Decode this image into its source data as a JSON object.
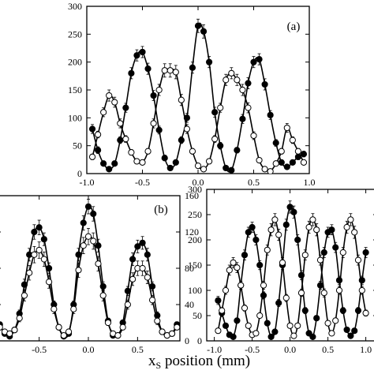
{
  "chart_data": [
    {
      "type": "scatter",
      "panel_label": "(a)",
      "xlim": [
        -1.0,
        1.0
      ],
      "ylim": [
        0,
        300
      ],
      "xticks": [
        -1.0,
        -0.5,
        0.0,
        0.5,
        1.0
      ],
      "xtick_labels": [
        "-1.0",
        "-0.5",
        "0.0",
        "0.5",
        "1.0"
      ],
      "yticks": [
        0,
        50,
        100,
        150,
        200,
        250,
        300
      ],
      "ytick_labels": [
        "0",
        "50",
        "100",
        "150",
        "200",
        "250",
        "300"
      ],
      "series": [
        {
          "marker": "filled",
          "x": [
            -0.95,
            -0.9,
            -0.85,
            -0.8,
            -0.75,
            -0.7,
            -0.65,
            -0.6,
            -0.55,
            -0.5,
            -0.45,
            -0.4,
            -0.35,
            -0.3,
            -0.25,
            -0.2,
            -0.15,
            -0.1,
            -0.05,
            0.0,
            0.05,
            0.1,
            0.15,
            0.2,
            0.25,
            0.3,
            0.35,
            0.4,
            0.45,
            0.5,
            0.55,
            0.6,
            0.65,
            0.7,
            0.75,
            0.8,
            0.85,
            0.9,
            0.95
          ],
          "y": [
            80,
            42,
            18,
            8,
            18,
            60,
            118,
            180,
            212,
            218,
            188,
            140,
            78,
            28,
            10,
            20,
            60,
            100,
            190,
            265,
            255,
            200,
            110,
            50,
            10,
            6,
            42,
            98,
            162,
            200,
            205,
            160,
            105,
            55,
            20,
            12,
            20,
            30,
            35
          ],
          "error": [
            8,
            6,
            4,
            3,
            4,
            6,
            8,
            10,
            10,
            10,
            10,
            9,
            7,
            5,
            3,
            4,
            6,
            8,
            10,
            12,
            12,
            10,
            9,
            6,
            3,
            3,
            5,
            8,
            10,
            10,
            10,
            10,
            8,
            6,
            4,
            3,
            4,
            5,
            5
          ]
        },
        {
          "marker": "open",
          "x": [
            -0.95,
            -0.9,
            -0.85,
            -0.8,
            -0.75,
            -0.7,
            -0.65,
            -0.6,
            -0.55,
            -0.5,
            -0.45,
            -0.4,
            -0.35,
            -0.3,
            -0.25,
            -0.2,
            -0.15,
            -0.1,
            -0.05,
            0.0,
            0.05,
            0.1,
            0.15,
            0.2,
            0.25,
            0.3,
            0.35,
            0.4,
            0.45,
            0.5,
            0.55,
            0.6,
            0.65,
            0.7,
            0.75,
            0.8,
            0.85,
            0.9,
            0.95
          ],
          "y": [
            30,
            70,
            110,
            140,
            128,
            90,
            62,
            38,
            22,
            20,
            40,
            90,
            150,
            185,
            185,
            182,
            132,
            80,
            40,
            14,
            8,
            22,
            62,
            118,
            168,
            180,
            168,
            150,
            118,
            68,
            24,
            8,
            4,
            18,
            40,
            82,
            60,
            40,
            20
          ],
          "error": [
            5,
            6,
            8,
            10,
            9,
            8,
            6,
            5,
            4,
            4,
            5,
            8,
            10,
            12,
            12,
            12,
            10,
            8,
            5,
            3,
            3,
            4,
            6,
            8,
            10,
            10,
            10,
            10,
            9,
            7,
            4,
            3,
            3,
            4,
            5,
            8,
            6,
            5,
            4
          ]
        }
      ]
    },
    {
      "type": "scatter",
      "panel_label": "(b)",
      "xlim": [
        -0.93,
        0.93
      ],
      "ylim": [
        0,
        160
      ],
      "xticks": [
        -0.5,
        0.0,
        0.5
      ],
      "xtick_labels": [
        "-0.5",
        "0.0",
        "0.5"
      ],
      "yticks_right": [
        0,
        40,
        80,
        120,
        160
      ],
      "ytick_labels_right": [
        "0",
        "40",
        "80",
        "120",
        "160"
      ],
      "series": [
        {
          "marker": "filled",
          "x": [
            -0.9,
            -0.85,
            -0.8,
            -0.75,
            -0.7,
            -0.65,
            -0.6,
            -0.55,
            -0.5,
            -0.45,
            -0.4,
            -0.35,
            -0.3,
            -0.25,
            -0.2,
            -0.15,
            -0.1,
            -0.05,
            0.0,
            0.05,
            0.1,
            0.15,
            0.2,
            0.25,
            0.3,
            0.35,
            0.4,
            0.45,
            0.5,
            0.55,
            0.6,
            0.65,
            0.7,
            0.75,
            0.8,
            0.85,
            0.9
          ],
          "y": [
            18,
            8,
            5,
            12,
            30,
            62,
            95,
            120,
            125,
            112,
            80,
            40,
            15,
            5,
            8,
            40,
            95,
            130,
            148,
            140,
            105,
            60,
            22,
            6,
            6,
            20,
            55,
            90,
            104,
            108,
            95,
            60,
            28,
            10,
            6,
            8,
            18
          ],
          "error": [
            3,
            2,
            2,
            3,
            4,
            6,
            7,
            8,
            8,
            7,
            6,
            4,
            3,
            2,
            2,
            4,
            7,
            8,
            8,
            8,
            7,
            5,
            3,
            2,
            2,
            3,
            5,
            7,
            7,
            7,
            7,
            5,
            4,
            3,
            2,
            2,
            3
          ]
        },
        {
          "marker": "open",
          "x": [
            -0.9,
            -0.85,
            -0.8,
            -0.75,
            -0.7,
            -0.65,
            -0.6,
            -0.55,
            -0.5,
            -0.45,
            -0.4,
            -0.35,
            -0.3,
            -0.25,
            -0.2,
            -0.15,
            -0.1,
            -0.05,
            0.0,
            0.05,
            0.1,
            0.15,
            0.2,
            0.25,
            0.3,
            0.35,
            0.4,
            0.45,
            0.5,
            0.55,
            0.6,
            0.65,
            0.7,
            0.75,
            0.8,
            0.85,
            0.9
          ],
          "y": [
            15,
            10,
            8,
            12,
            25,
            50,
            75,
            95,
            100,
            90,
            65,
            35,
            15,
            6,
            10,
            35,
            78,
            105,
            115,
            110,
            85,
            50,
            20,
            8,
            6,
            15,
            40,
            68,
            80,
            80,
            70,
            45,
            22,
            10,
            6,
            8,
            15
          ],
          "error": [
            3,
            2,
            2,
            3,
            4,
            6,
            8,
            9,
            9,
            8,
            7,
            5,
            3,
            2,
            2,
            5,
            8,
            9,
            9,
            9,
            8,
            6,
            3,
            2,
            2,
            3,
            5,
            7,
            8,
            8,
            7,
            5,
            4,
            3,
            2,
            2,
            3
          ]
        }
      ]
    },
    {
      "type": "scatter",
      "panel_label": "",
      "xlim": [
        -1.1,
        1.15
      ],
      "ylim": [
        0,
        300
      ],
      "xticks": [
        -1.0,
        -0.5,
        0.0,
        0.5,
        1.0
      ],
      "xtick_labels": [
        "-1.0",
        "-0.5",
        "0.0",
        "0.5",
        "1.0"
      ],
      "yticks": [
        0,
        50,
        100,
        150,
        200,
        250,
        300
      ],
      "ytick_labels": [
        "0",
        "50",
        "100",
        "150",
        "200",
        "250",
        "300"
      ],
      "series": [
        {
          "marker": "filled",
          "x": [
            -0.95,
            -0.9,
            -0.85,
            -0.8,
            -0.75,
            -0.7,
            -0.65,
            -0.6,
            -0.55,
            -0.5,
            -0.45,
            -0.4,
            -0.35,
            -0.3,
            -0.25,
            -0.2,
            -0.15,
            -0.1,
            -0.05,
            0.0,
            0.05,
            0.1,
            0.15,
            0.2,
            0.25,
            0.3,
            0.35,
            0.4,
            0.45,
            0.5,
            0.55,
            0.6,
            0.65,
            0.7,
            0.75,
            0.8,
            0.85,
            0.9,
            0.95,
            1.0
          ],
          "y": [
            80,
            55,
            30,
            12,
            8,
            40,
            110,
            170,
            215,
            225,
            200,
            150,
            90,
            35,
            8,
            18,
            75,
            150,
            230,
            265,
            255,
            200,
            130,
            60,
            15,
            8,
            45,
            110,
            175,
            215,
            220,
            185,
            120,
            60,
            22,
            10,
            20,
            60,
            120,
            175
          ],
          "error": [
            8,
            7,
            5,
            3,
            3,
            5,
            8,
            10,
            10,
            10,
            10,
            9,
            7,
            5,
            3,
            4,
            7,
            9,
            11,
            12,
            12,
            10,
            9,
            6,
            3,
            3,
            5,
            8,
            10,
            10,
            10,
            10,
            8,
            6,
            4,
            3,
            4,
            6,
            8,
            10
          ]
        },
        {
          "marker": "open",
          "x": [
            -0.95,
            -0.9,
            -0.85,
            -0.8,
            -0.75,
            -0.7,
            -0.65,
            -0.6,
            -0.55,
            -0.5,
            -0.45,
            -0.4,
            -0.35,
            -0.3,
            -0.25,
            -0.2,
            -0.15,
            -0.1,
            -0.05,
            0.0,
            0.05,
            0.1,
            0.15,
            0.2,
            0.25,
            0.3,
            0.35,
            0.4,
            0.45,
            0.5,
            0.55,
            0.6,
            0.65,
            0.7,
            0.75,
            0.8,
            0.85,
            0.9,
            0.95,
            1.0
          ],
          "y": [
            20,
            60,
            100,
            140,
            155,
            145,
            110,
            65,
            30,
            12,
            15,
            50,
            110,
            180,
            220,
            240,
            210,
            155,
            85,
            30,
            10,
            30,
            95,
            170,
            225,
            240,
            220,
            160,
            95,
            35,
            15,
            40,
            100,
            175,
            225,
            240,
            215,
            160,
            100,
            55
          ],
          "error": [
            5,
            6,
            8,
            10,
            10,
            10,
            8,
            6,
            4,
            3,
            3,
            5,
            8,
            10,
            12,
            12,
            11,
            10,
            7,
            4,
            3,
            4,
            7,
            10,
            12,
            12,
            12,
            10,
            8,
            5,
            3,
            5,
            8,
            10,
            12,
            12,
            12,
            10,
            8,
            6
          ]
        }
      ]
    }
  ],
  "figure": {
    "xlabel_main": "x",
    "xlabel_sub": "S",
    "xlabel_rest": " position (mm)"
  }
}
